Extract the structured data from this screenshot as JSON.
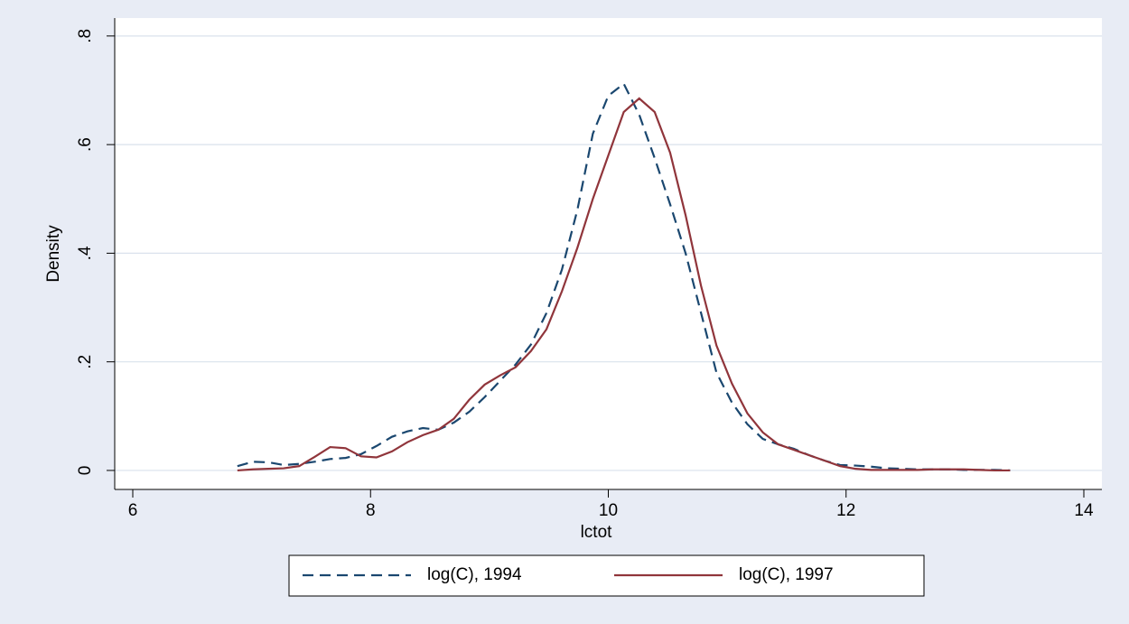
{
  "chart_data": {
    "type": "line",
    "x_label": "lctot",
    "y_label": "Density",
    "x": [
      6.88,
      7.01,
      7.14,
      7.27,
      7.4,
      7.53,
      7.66,
      7.79,
      7.92,
      8.05,
      8.18,
      8.31,
      8.44,
      8.57,
      8.7,
      8.83,
      8.96,
      9.09,
      9.22,
      9.35,
      9.48,
      9.61,
      9.74,
      9.87,
      10.0,
      10.13,
      10.26,
      10.39,
      10.52,
      10.65,
      10.78,
      10.91,
      11.04,
      11.17,
      11.3,
      11.43,
      11.56,
      11.69,
      11.82,
      11.95,
      12.08,
      12.21,
      12.34,
      12.47,
      12.6,
      12.73,
      12.86,
      12.99,
      13.12,
      13.25,
      13.38
    ],
    "series": [
      {
        "name": "log(C), 1994",
        "color": "#1a476f",
        "line_style": "dashed",
        "values": [
          0.008,
          0.016,
          0.015,
          0.01,
          0.012,
          0.016,
          0.021,
          0.023,
          0.03,
          0.045,
          0.062,
          0.072,
          0.078,
          0.075,
          0.088,
          0.108,
          0.135,
          0.165,
          0.195,
          0.232,
          0.29,
          0.37,
          0.48,
          0.62,
          0.69,
          0.712,
          0.655,
          0.575,
          0.49,
          0.4,
          0.29,
          0.18,
          0.125,
          0.085,
          0.058,
          0.048,
          0.04,
          0.028,
          0.018,
          0.01,
          0.009,
          0.007,
          0.004,
          0.003,
          0.002,
          0.002,
          0.002,
          0.001,
          0.001,
          0.001,
          0.0
        ]
      },
      {
        "name": "log(C), 1997",
        "color": "#90353b",
        "line_style": "solid",
        "values": [
          0.0,
          0.002,
          0.003,
          0.004,
          0.008,
          0.025,
          0.043,
          0.041,
          0.026,
          0.024,
          0.035,
          0.052,
          0.065,
          0.075,
          0.095,
          0.13,
          0.158,
          0.175,
          0.19,
          0.22,
          0.26,
          0.33,
          0.41,
          0.5,
          0.58,
          0.66,
          0.685,
          0.66,
          0.585,
          0.47,
          0.34,
          0.23,
          0.16,
          0.105,
          0.07,
          0.048,
          0.038,
          0.028,
          0.018,
          0.008,
          0.003,
          0.001,
          0.001,
          0.001,
          0.001,
          0.002,
          0.002,
          0.002,
          0.001,
          0.0,
          0.0
        ]
      }
    ],
    "xlim": [
      5.848,
      14.152
    ],
    "xticks": [
      6,
      8,
      10,
      12,
      14
    ],
    "ylim": [
      -0.035,
      0.833
    ],
    "yticks": [
      0,
      {
        "value": 0.2,
        "label": ".2"
      },
      {
        "value": 0.4,
        "label": ".4"
      },
      {
        "value": 0.6,
        "label": ".6"
      },
      {
        "value": 0.8,
        "label": ".8"
      }
    ],
    "grid": true,
    "legend": "bottom"
  }
}
